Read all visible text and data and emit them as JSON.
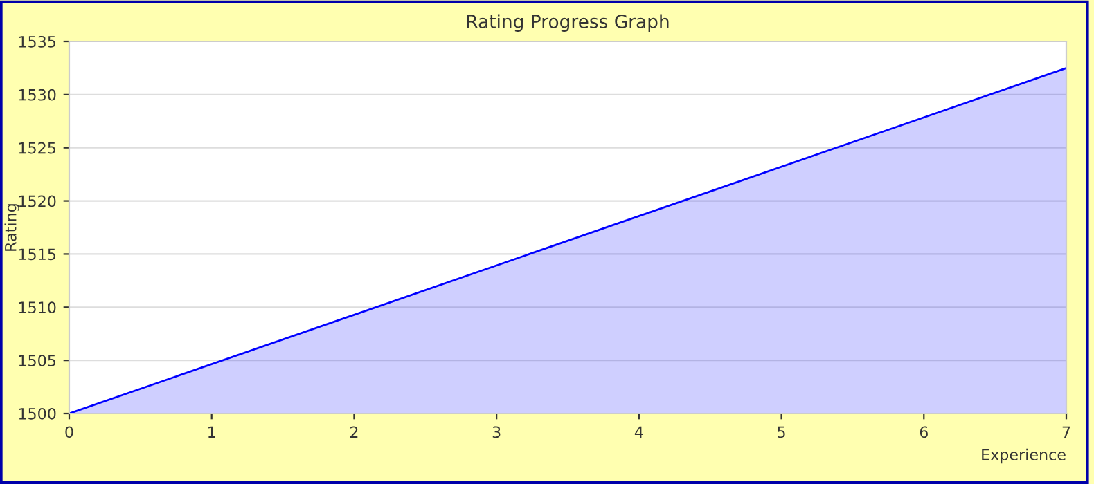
{
  "chart_data": {
    "type": "area",
    "title": "Rating Progress Graph",
    "xlabel": "Experience",
    "ylabel": "Rating",
    "x": [
      0,
      7
    ],
    "series": [
      {
        "color": "#0000ff",
        "values": [
          1500,
          1532.5
        ]
      }
    ],
    "xlim": [
      0,
      7
    ],
    "xticks": [
      0,
      1,
      2,
      3,
      4,
      5,
      6,
      7
    ],
    "ylim": [
      1500,
      1535
    ],
    "yticks": [
      1500,
      1505,
      1510,
      1515,
      1520,
      1525,
      1530,
      1535
    ],
    "grid": "y",
    "legend": false
  }
}
